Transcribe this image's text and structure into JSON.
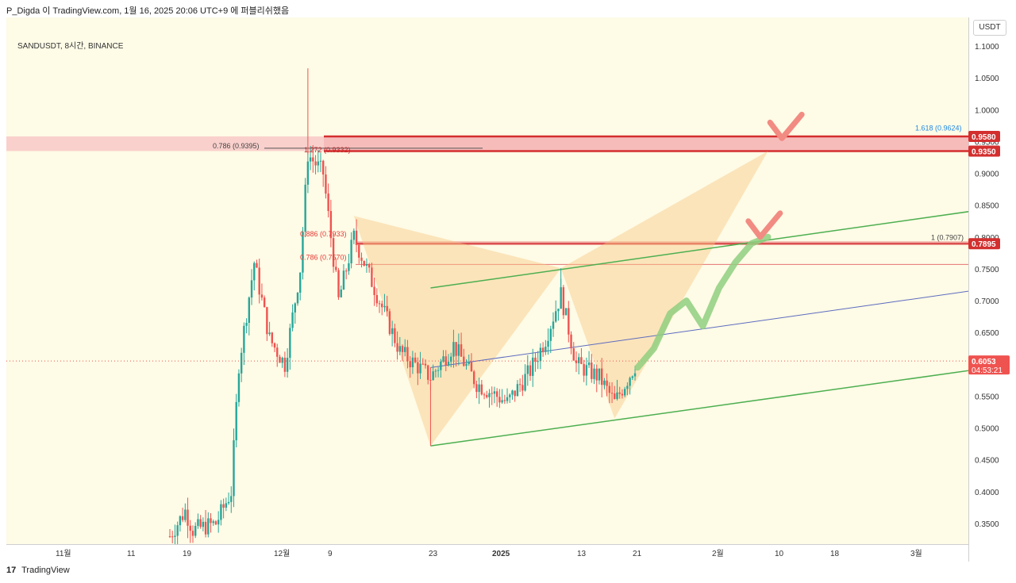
{
  "header": {
    "text": "P_Digda 이 TradingView.com, 1월 16, 2025 20:06 UTC+9 에 퍼블리쉬했음"
  },
  "symbol": "SANDUSDT, 8시간, BINANCE",
  "currency_button": "USDT",
  "footer": {
    "logo": "17",
    "brand": "TradingView"
  },
  "colors": {
    "up": "#26a69a",
    "down": "#ef5350",
    "resistance": "#d32f2f",
    "zone": "#f7c6c6",
    "pattern": "#f9c784",
    "channel": "#4caf50",
    "midline": "#5c6bc0",
    "projection": "#8fcf7f",
    "target_mark": "#f28b82",
    "background": "#fefbe6"
  },
  "chart_data": {
    "type": "candlestick",
    "title": "SANDUSDT, 8시간, BINANCE",
    "ylim": [
      0.32,
      1.12
    ],
    "y_scale": "linear",
    "y_ticks": [
      "1.1000",
      "1.0500",
      "1.0000",
      "0.9500",
      "0.9000",
      "0.8500",
      "0.8000",
      "0.7500",
      "0.7000",
      "0.6500",
      "0.6000",
      "0.5500",
      "0.5000",
      "0.4500",
      "0.4000",
      "0.3500"
    ],
    "x_ticks": [
      "11월",
      "11",
      "19",
      "12월",
      "9",
      "23",
      "2025",
      "13",
      "21",
      "2월",
      "10",
      "18",
      "3월"
    ],
    "grid": false,
    "current_price": {
      "label": "0.6053",
      "countdown": "04:53:21",
      "value": 0.6053
    },
    "resistance_levels": [
      {
        "value": 0.958,
        "label": "0.9580"
      },
      {
        "value": 0.935,
        "label": "0.9350"
      },
      {
        "value": 0.7895,
        "label": "0.7895"
      }
    ],
    "fib_labels": [
      {
        "text": "0.786 (0.9395)",
        "value": 0.9395
      },
      {
        "text": "1.272 (0.9332)",
        "value": 0.9332
      },
      {
        "text": "1.618 (0.9624)",
        "value": 0.9624
      },
      {
        "text": "0.886 (0.7933)",
        "value": 0.7933
      },
      {
        "text": "0.786 (0.7570)",
        "value": 0.757
      },
      {
        "text": "1 (0.7907)",
        "value": 0.7907
      }
    ],
    "channel": {
      "upper_start": [
        "Dec 20",
        0.72
      ],
      "upper_end": [
        "Mar 9",
        0.855
      ],
      "lower_start": [
        "Dec 20",
        0.472
      ],
      "lower_end": [
        "Mar 9",
        0.605
      ],
      "midline_start": [
        "Dec 20",
        0.595
      ],
      "midline_end": [
        "Mar 9",
        0.73
      ]
    },
    "harmonic_pattern_points": [
      [
        "Dec 10",
        0.833
      ],
      [
        "Dec 20",
        0.472
      ],
      [
        "Jan 6",
        0.751
      ],
      [
        "Jan 13",
        0.515
      ],
      [
        "Feb 2",
        0.935
      ]
    ],
    "projection_path": [
      0.595,
      0.625,
      0.68,
      0.7,
      0.66,
      0.72,
      0.76,
      0.79,
      0.8
    ],
    "candles_ohlc_summary": {
      "start": [
        "Nov 16",
        0.33
      ],
      "rally_high": [
        "Dec 4",
        1.065
      ],
      "pullback_low": [
        "Dec 20",
        0.472
      ],
      "swing_high": [
        "Jan 6",
        0.751
      ],
      "swing_low": [
        "Jan 13",
        0.515
      ],
      "last": [
        "Jan 16",
        0.6053
      ]
    }
  }
}
